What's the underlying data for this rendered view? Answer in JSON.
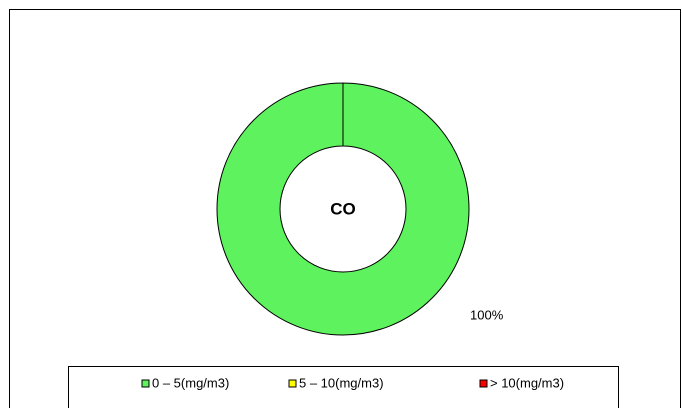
{
  "chart_data": {
    "type": "donut",
    "title": "CO",
    "categories": [
      "0 – 5(mg/m3)",
      "5 – 10(mg/m3)",
      "> 10(mg/m3)"
    ],
    "values": [
      100,
      0,
      0
    ],
    "value_labels": [
      "100%",
      null,
      null
    ],
    "colors": [
      "#5ef25e",
      "#ffff00",
      "#ff0000"
    ],
    "legend": "bottom"
  }
}
